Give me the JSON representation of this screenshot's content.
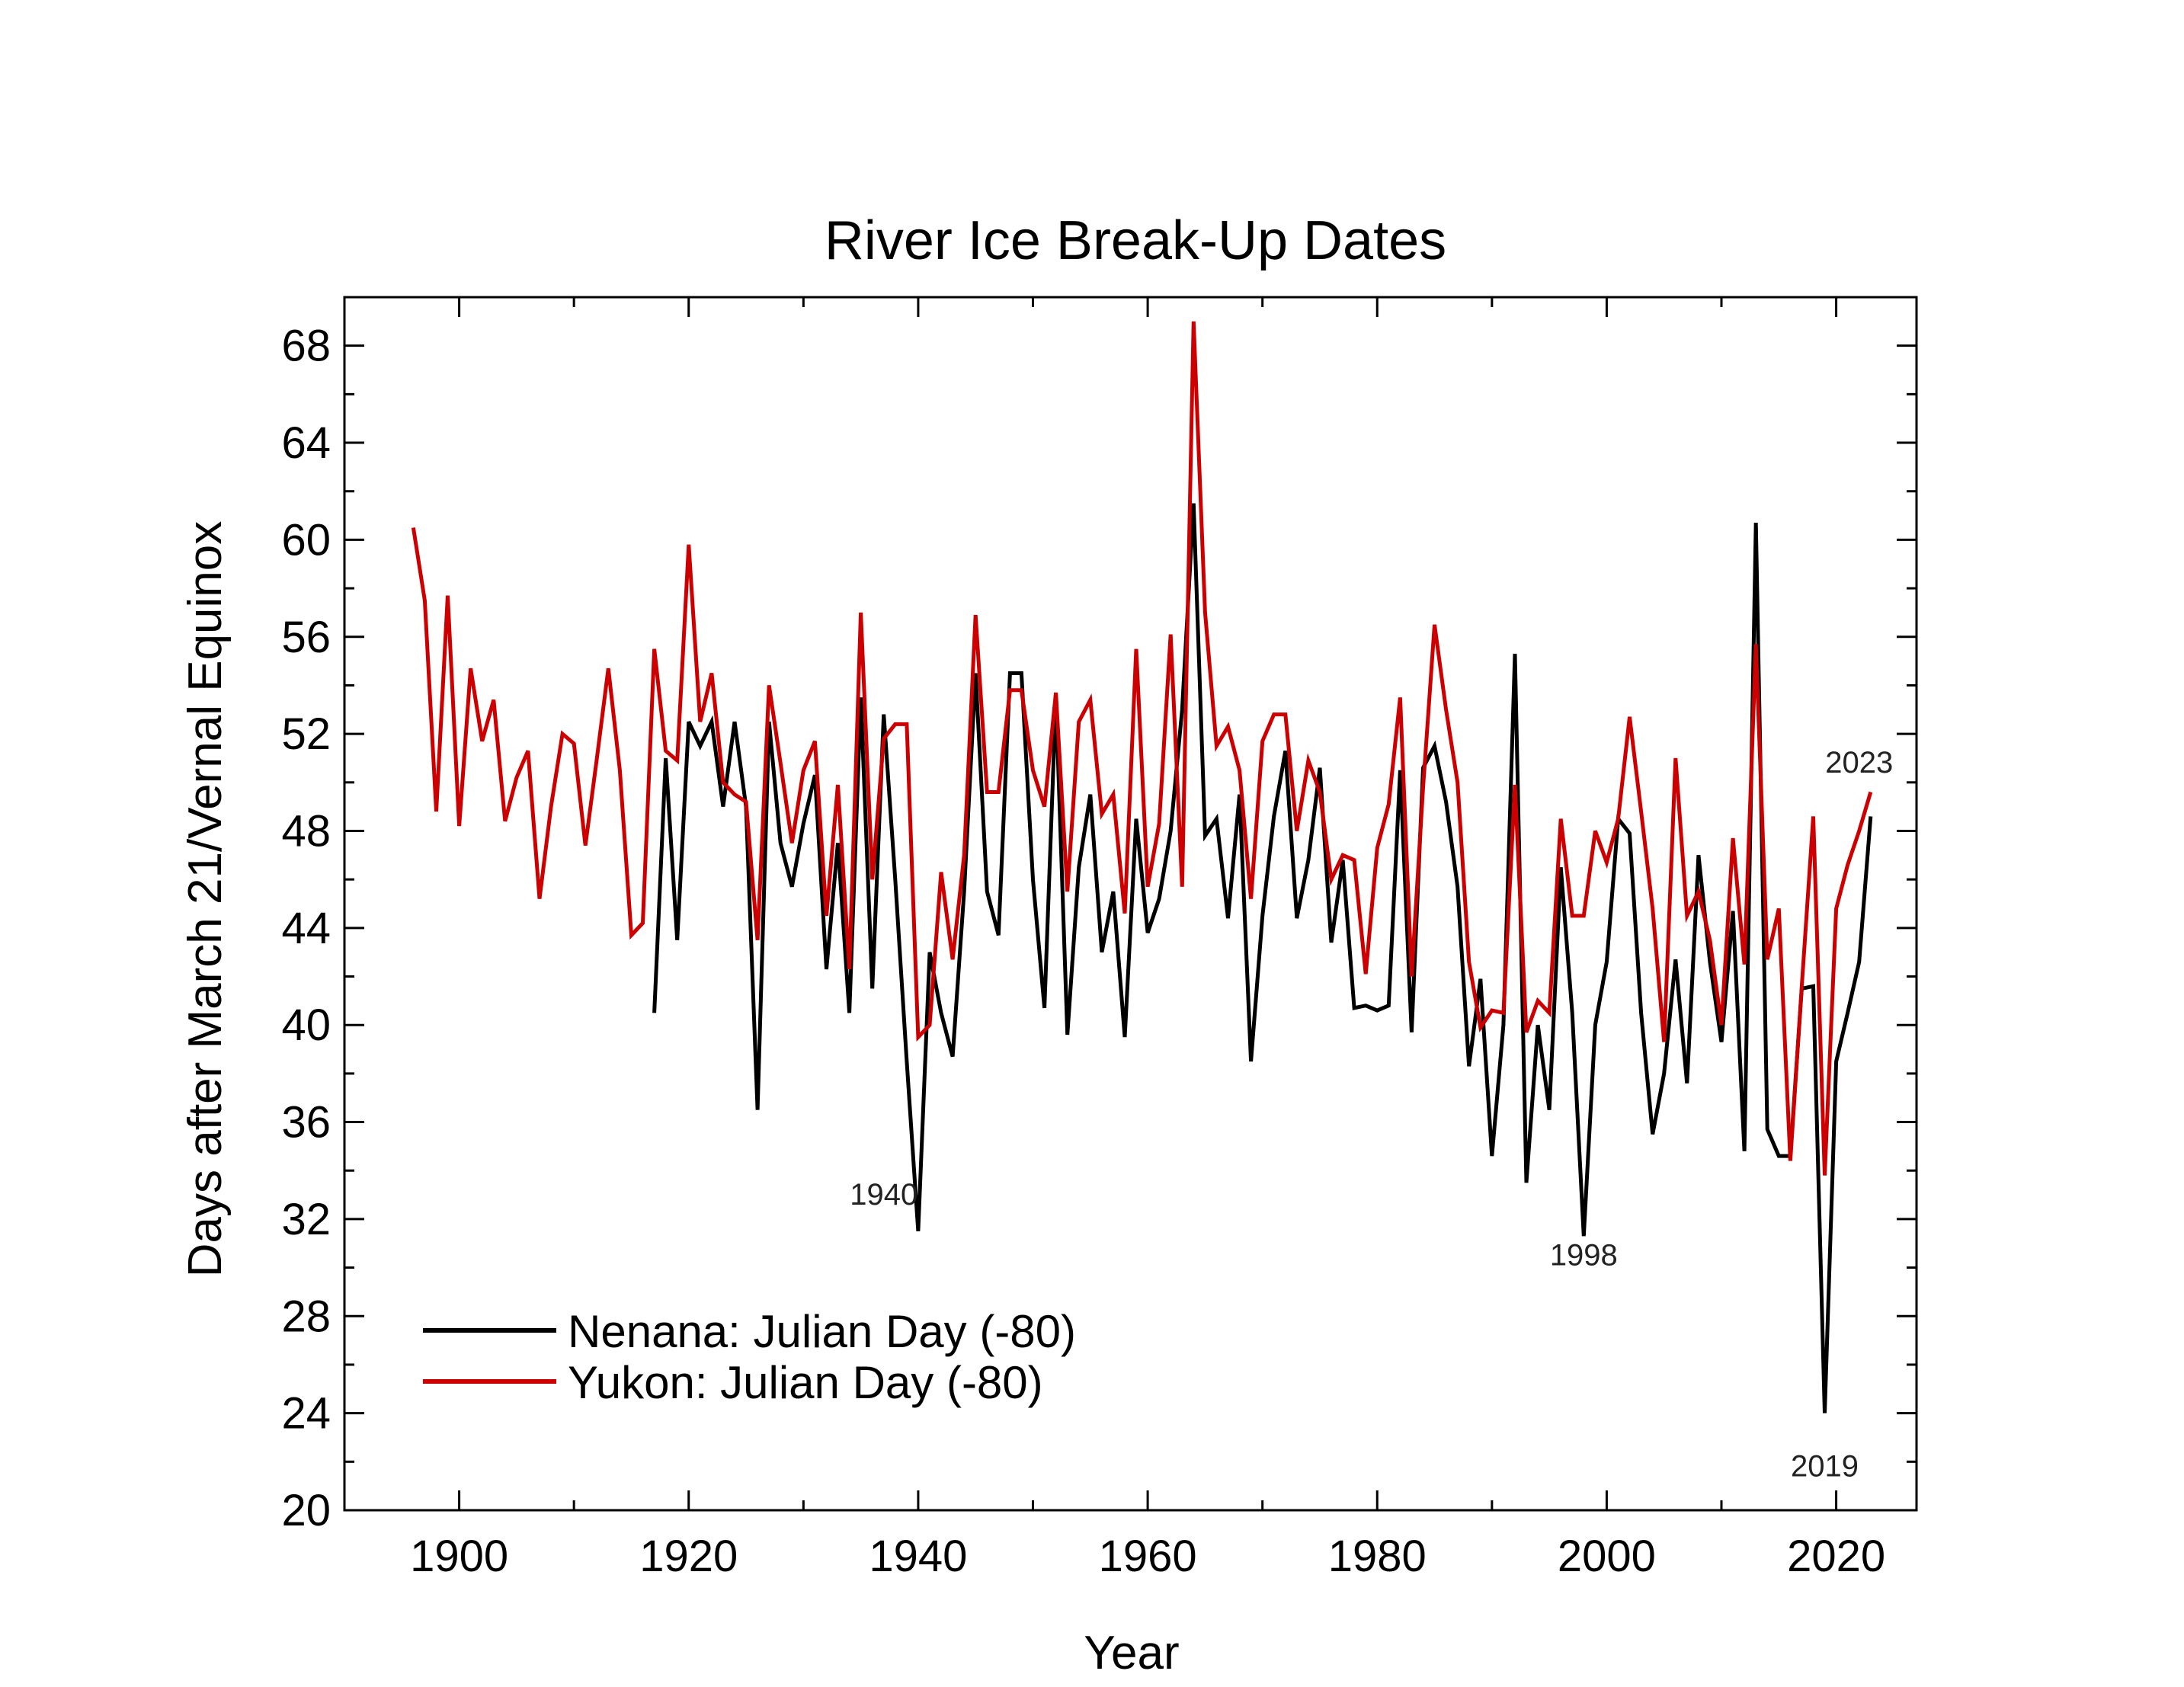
{
  "chart_data": {
    "type": "line",
    "title": "River Ice Break-Up Dates",
    "xlabel": "Year",
    "ylabel": "Days after March 21/Vernal Equinox",
    "xlim": [
      1890,
      2027
    ],
    "ylim": [
      20,
      70
    ],
    "xticks": [
      1900,
      1920,
      1940,
      1960,
      1980,
      2000,
      2020
    ],
    "yticks": [
      20,
      24,
      28,
      32,
      36,
      40,
      44,
      48,
      52,
      56,
      60,
      64,
      68
    ],
    "grid": false,
    "legend_position": "bottom-left",
    "series": [
      {
        "name": "Nenana: Julian Day (-80)",
        "color": "#000000",
        "x": [
          1917,
          1918,
          1919,
          1920,
          1921,
          1922,
          1923,
          1924,
          1925,
          1926,
          1927,
          1928,
          1929,
          1930,
          1931,
          1932,
          1933,
          1934,
          1935,
          1936,
          1937,
          1938,
          1939,
          1940,
          1941,
          1942,
          1943,
          1944,
          1945,
          1946,
          1947,
          1948,
          1949,
          1950,
          1951,
          1952,
          1953,
          1954,
          1955,
          1956,
          1957,
          1958,
          1959,
          1960,
          1961,
          1962,
          1963,
          1964,
          1965,
          1966,
          1967,
          1968,
          1969,
          1970,
          1971,
          1972,
          1973,
          1974,
          1975,
          1976,
          1977,
          1978,
          1979,
          1980,
          1981,
          1982,
          1983,
          1984,
          1985,
          1986,
          1987,
          1988,
          1989,
          1990,
          1991,
          1992,
          1993,
          1994,
          1995,
          1996,
          1997,
          1998,
          1999,
          2000,
          2001,
          2002,
          2003,
          2004,
          2005,
          2006,
          2007,
          2008,
          2009,
          2010,
          2011,
          2012,
          2013,
          2014,
          2015,
          2016,
          2017,
          2018,
          2019,
          2020,
          2021,
          2022,
          2023
        ],
        "y": [
          40.5,
          51,
          43.5,
          52.5,
          51.5,
          52.5,
          49,
          52.5,
          49,
          36.5,
          52.5,
          47.5,
          45.7,
          48.3,
          50.3,
          42.3,
          47.5,
          40.5,
          53.5,
          41.5,
          52.8,
          46,
          38.5,
          31.5,
          43,
          40.5,
          38.7,
          45.5,
          54.5,
          45.5,
          43.7,
          54.5,
          54.5,
          46,
          40.7,
          53.5,
          39.6,
          46.5,
          49.5,
          43,
          45.5,
          39.5,
          48.5,
          43.8,
          45.2,
          48,
          53,
          61.5,
          47.8,
          48.5,
          44.4,
          49.5,
          38.5,
          44.5,
          48.6,
          51.3,
          44.4,
          46.8,
          50.6,
          43.4,
          46.8,
          40.7,
          40.8,
          40.6,
          40.8,
          50.5,
          39.7,
          50.6,
          51.5,
          49.2,
          45.7,
          38.3,
          41.9,
          34.6,
          40,
          55.3,
          33.5,
          40,
          36.5,
          46.5,
          40.5,
          31.3,
          40,
          42.6,
          48.5,
          47.9,
          40.5,
          35.5,
          38,
          42.7,
          37.6,
          47,
          42.6,
          39.3,
          44.7,
          34.8,
          60.7,
          35.7,
          34.6,
          34.6,
          41.5,
          41.6,
          24,
          38.5,
          40.5,
          42.6,
          48.6
        ]
      },
      {
        "name": "Yukon: Julian Day (-80)",
        "color": "#cc0000",
        "x": [
          1896,
          1897,
          1898,
          1899,
          1900,
          1901,
          1902,
          1903,
          1904,
          1905,
          1906,
          1907,
          1908,
          1909,
          1910,
          1911,
          1912,
          1913,
          1914,
          1915,
          1916,
          1917,
          1918,
          1919,
          1920,
          1921,
          1922,
          1923,
          1924,
          1925,
          1926,
          1927,
          1928,
          1929,
          1930,
          1931,
          1932,
          1933,
          1934,
          1935,
          1936,
          1937,
          1938,
          1939,
          1940,
          1941,
          1942,
          1943,
          1944,
          1945,
          1946,
          1947,
          1948,
          1949,
          1950,
          1951,
          1952,
          1953,
          1954,
          1955,
          1956,
          1957,
          1958,
          1959,
          1960,
          1961,
          1962,
          1963,
          1964,
          1965,
          1966,
          1967,
          1968,
          1969,
          1970,
          1971,
          1972,
          1973,
          1974,
          1975,
          1976,
          1977,
          1978,
          1979,
          1980,
          1981,
          1982,
          1983,
          1984,
          1985,
          1986,
          1987,
          1988,
          1989,
          1990,
          1991,
          1992,
          1993,
          1994,
          1995,
          1996,
          1997,
          1998,
          1999,
          2000,
          2001,
          2002,
          2003,
          2004,
          2005,
          2006,
          2007,
          2008,
          2009,
          2010,
          2011,
          2012,
          2013,
          2014,
          2015,
          2016,
          2017,
          2018,
          2019,
          2020,
          2021,
          2022,
          2023
        ],
        "y": [
          60.5,
          57.5,
          48.8,
          57.7,
          48.2,
          54.7,
          51.7,
          53.4,
          48.4,
          50.2,
          51.3,
          45.2,
          49,
          52,
          51.6,
          47.4,
          51,
          54.7,
          50.5,
          43.7,
          44.2,
          55.5,
          51.3,
          50.9,
          59.8,
          52.5,
          54.5,
          50,
          49.5,
          49.2,
          43.5,
          54,
          50.8,
          47.5,
          50.5,
          51.7,
          44.5,
          49.9,
          42.3,
          57,
          46,
          51.8,
          52.4,
          52.4,
          39.5,
          40,
          46.3,
          42.7,
          47,
          56.9,
          49.6,
          49.6,
          53.8,
          53.8,
          50.5,
          49,
          53.7,
          45.5,
          52.5,
          53.4,
          48.7,
          49.5,
          44.6,
          55.5,
          45.7,
          48.3,
          56.1,
          45.7,
          69,
          57,
          51.5,
          52.3,
          50.5,
          45.2,
          51.7,
          52.8,
          52.8,
          48,
          50.9,
          49.6,
          46,
          47,
          46.8,
          42.1,
          47.3,
          49.1,
          53.5,
          42,
          49.8,
          56.5,
          53,
          50,
          42.6,
          39.9,
          40.6,
          40.5,
          49.9,
          39.7,
          41,
          40.5,
          48.5,
          44.5,
          44.5,
          48,
          46.7,
          48.5,
          52.7,
          48.8,
          44.8,
          39.3,
          51,
          44.5,
          45.5,
          43.5,
          40,
          47.7,
          42.5,
          55.7,
          42.7,
          44.8,
          34.4,
          41.6,
          48.6,
          33.8,
          44.8,
          46.6,
          48,
          49.6
        ]
      }
    ],
    "annotations": [
      {
        "text": "1940",
        "x": 1937,
        "y": 32.6
      },
      {
        "text": "1998",
        "x": 1998,
        "y": 30.1
      },
      {
        "text": "2019",
        "x": 2019,
        "y": 21.4
      },
      {
        "text": "2023",
        "x": 2022,
        "y": 50.4
      }
    ]
  }
}
